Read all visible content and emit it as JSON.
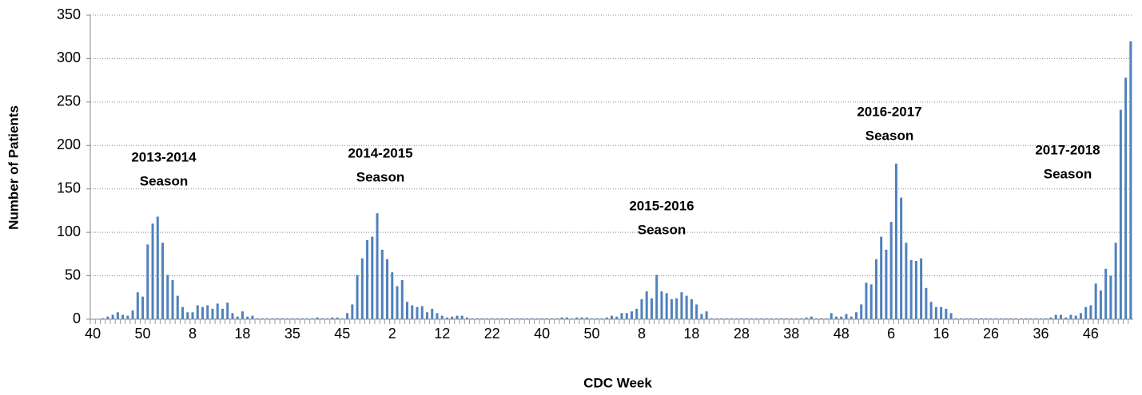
{
  "chart_data": {
    "type": "bar",
    "y_label": "Number of Patients",
    "x_label": "CDC Week",
    "annotations": [
      [
        "2013-2014",
        "Season"
      ],
      [
        "2014-2015",
        "Season"
      ],
      [
        "2015-2016",
        "Season"
      ],
      [
        "2016-2017",
        "Season"
      ],
      [
        "2017-2018",
        "Season"
      ]
    ],
    "categories": [
      "40",
      null,
      null,
      null,
      null,
      null,
      null,
      null,
      null,
      null,
      "50",
      null,
      null,
      null,
      null,
      null,
      null,
      null,
      null,
      null,
      "8",
      null,
      null,
      null,
      null,
      null,
      null,
      null,
      null,
      null,
      "18",
      null,
      null,
      null,
      null,
      null,
      null,
      null,
      null,
      null,
      "35",
      null,
      null,
      null,
      null,
      null,
      null,
      null,
      null,
      null,
      "45",
      null,
      null,
      null,
      null,
      null,
      null,
      null,
      null,
      null,
      "2",
      null,
      null,
      null,
      null,
      null,
      null,
      null,
      null,
      null,
      "12",
      null,
      null,
      null,
      null,
      null,
      null,
      null,
      null,
      null,
      "22",
      null,
      null,
      null,
      null,
      null,
      null,
      null,
      null,
      null,
      "40",
      null,
      null,
      null,
      null,
      null,
      null,
      null,
      null,
      null,
      "50",
      null,
      null,
      null,
      null,
      null,
      null,
      null,
      null,
      null,
      "8",
      null,
      null,
      null,
      null,
      null,
      null,
      null,
      null,
      null,
      "18",
      null,
      null,
      null,
      null,
      null,
      null,
      null,
      null,
      null,
      "28",
      null,
      null,
      null,
      null,
      null,
      null,
      null,
      null,
      null,
      "38",
      null,
      null,
      null,
      null,
      null,
      null,
      null,
      null,
      null,
      "48",
      null,
      null,
      null,
      null,
      null,
      null,
      null,
      null,
      null,
      "6",
      null,
      null,
      null,
      null,
      null,
      null,
      null,
      null,
      null,
      "16",
      null,
      null,
      null,
      null,
      null,
      null,
      null,
      null,
      null,
      "26",
      null,
      null,
      null,
      null,
      null,
      null,
      null,
      null,
      null,
      "36",
      null,
      null,
      null,
      null,
      null,
      null,
      null,
      null,
      null,
      "46",
      null,
      null,
      null,
      null,
      null,
      null,
      null,
      null
    ],
    "values": [
      0,
      0,
      1,
      3,
      5,
      8,
      5,
      4,
      10,
      31,
      26,
      86,
      110,
      118,
      88,
      51,
      45,
      27,
      14,
      8,
      8,
      16,
      14,
      16,
      12,
      18,
      12,
      19,
      7,
      3,
      9,
      3,
      4,
      1,
      1,
      1,
      1,
      1,
      1,
      1,
      1,
      1,
      1,
      1,
      1,
      2,
      1,
      1,
      2,
      2,
      1,
      7,
      17,
      51,
      70,
      91,
      95,
      122,
      80,
      69,
      54,
      38,
      45,
      20,
      16,
      14,
      15,
      8,
      12,
      7,
      4,
      2,
      3,
      4,
      4,
      2,
      1,
      1,
      1,
      1,
      1,
      1,
      1,
      1,
      1,
      1,
      1,
      1,
      1,
      1,
      1,
      1,
      1,
      1,
      2,
      2,
      1,
      2,
      2,
      2,
      1,
      1,
      1,
      2,
      4,
      3,
      7,
      7,
      9,
      12,
      23,
      32,
      24,
      51,
      32,
      30,
      23,
      24,
      31,
      27,
      23,
      17,
      6,
      9,
      1,
      1,
      1,
      1,
      1,
      1,
      1,
      1,
      1,
      1,
      1,
      1,
      1,
      1,
      1,
      1,
      1,
      1,
      1,
      2,
      3,
      1,
      1,
      1,
      7,
      3,
      3,
      6,
      3,
      8,
      17,
      42,
      40,
      69,
      95,
      80,
      112,
      179,
      140,
      88,
      68,
      67,
      70,
      36,
      20,
      14,
      14,
      12,
      7,
      1,
      1,
      1,
      1,
      1,
      1,
      1,
      1,
      1,
      1,
      1,
      1,
      1,
      1,
      1,
      1,
      1,
      1,
      1,
      2,
      5,
      5,
      2,
      5,
      4,
      7,
      14,
      16,
      41,
      33,
      58,
      50,
      88,
      241,
      278,
      320
    ],
    "color": "#4f81bd",
    "ylim": [
      0,
      350
    ],
    "yticks": [
      0,
      50,
      100,
      150,
      200,
      250,
      300,
      350
    ],
    "grid": true
  }
}
